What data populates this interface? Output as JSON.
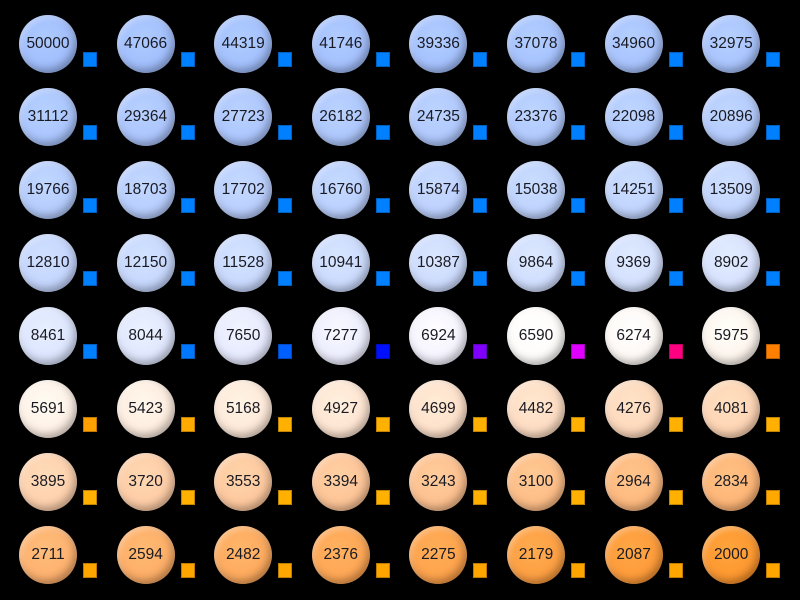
{
  "values": [
    50000,
    47066,
    44319,
    41746,
    39336,
    37078,
    34960,
    32975,
    31112,
    29364,
    27723,
    26182,
    24735,
    23376,
    22098,
    20896,
    19766,
    18703,
    17702,
    16760,
    15874,
    15038,
    14251,
    13509,
    12810,
    12150,
    11528,
    10941,
    10387,
    9864,
    9369,
    8902,
    8461,
    8044,
    7650,
    7277,
    6924,
    6590,
    6274,
    5975,
    5691,
    5423,
    5168,
    4927,
    4699,
    4482,
    4276,
    4081,
    3895,
    3720,
    3553,
    3394,
    3243,
    3100,
    2964,
    2834,
    2711,
    2594,
    2482,
    2376,
    2275,
    2179,
    2087,
    2000
  ],
  "square_colors": [
    "#0080ff",
    "#0080ff",
    "#0080ff",
    "#0080ff",
    "#0080ff",
    "#0080ff",
    "#0080ff",
    "#0080ff",
    "#0080ff",
    "#0080ff",
    "#0080ff",
    "#0080ff",
    "#0080ff",
    "#0080ff",
    "#0080ff",
    "#0080ff",
    "#0080ff",
    "#0080ff",
    "#0080ff",
    "#0080ff",
    "#0080ff",
    "#0080ff",
    "#0080ff",
    "#0080ff",
    "#0080ff",
    "#0080ff",
    "#0080ff",
    "#0080ff",
    "#0080ff",
    "#0080ff",
    "#0080ff",
    "#0080ff",
    "#0080ff",
    "#0078ff",
    "#0060ff",
    "#0010ff",
    "#8000ff",
    "#e000ff",
    "#ff0080",
    "#ff8000",
    "#ffa000",
    "#ffaa00",
    "#ffb000",
    "#ffb000",
    "#ffb000",
    "#ffb000",
    "#ffb000",
    "#ffb000",
    "#ffb000",
    "#ffb000",
    "#ffb000",
    "#ffb000",
    "#ffb000",
    "#ffb000",
    "#ffb000",
    "#ffa800",
    "#ffa500",
    "#ffa500",
    "#ffa500",
    "#ffa500",
    "#ffa500",
    "#ffa500",
    "#ffa500",
    "#ffa500"
  ],
  "background": "#000000"
}
